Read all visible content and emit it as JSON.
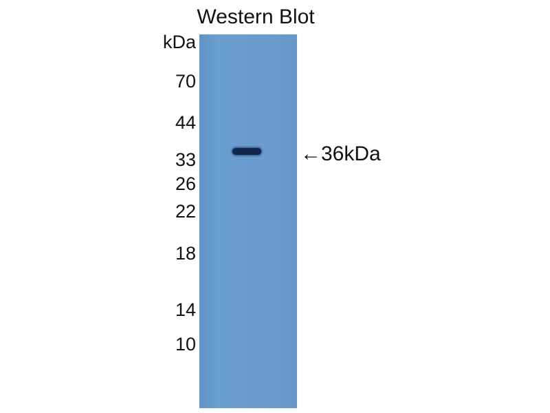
{
  "title": "Western Blot",
  "unit_label": "kDa",
  "markers": [
    "70",
    "44",
    "33",
    "26",
    "22",
    "18",
    "14",
    "10"
  ],
  "band_annotation": "←36kDa",
  "colors": {
    "membrane": "#6a9ccd",
    "band": "#10264a"
  }
}
